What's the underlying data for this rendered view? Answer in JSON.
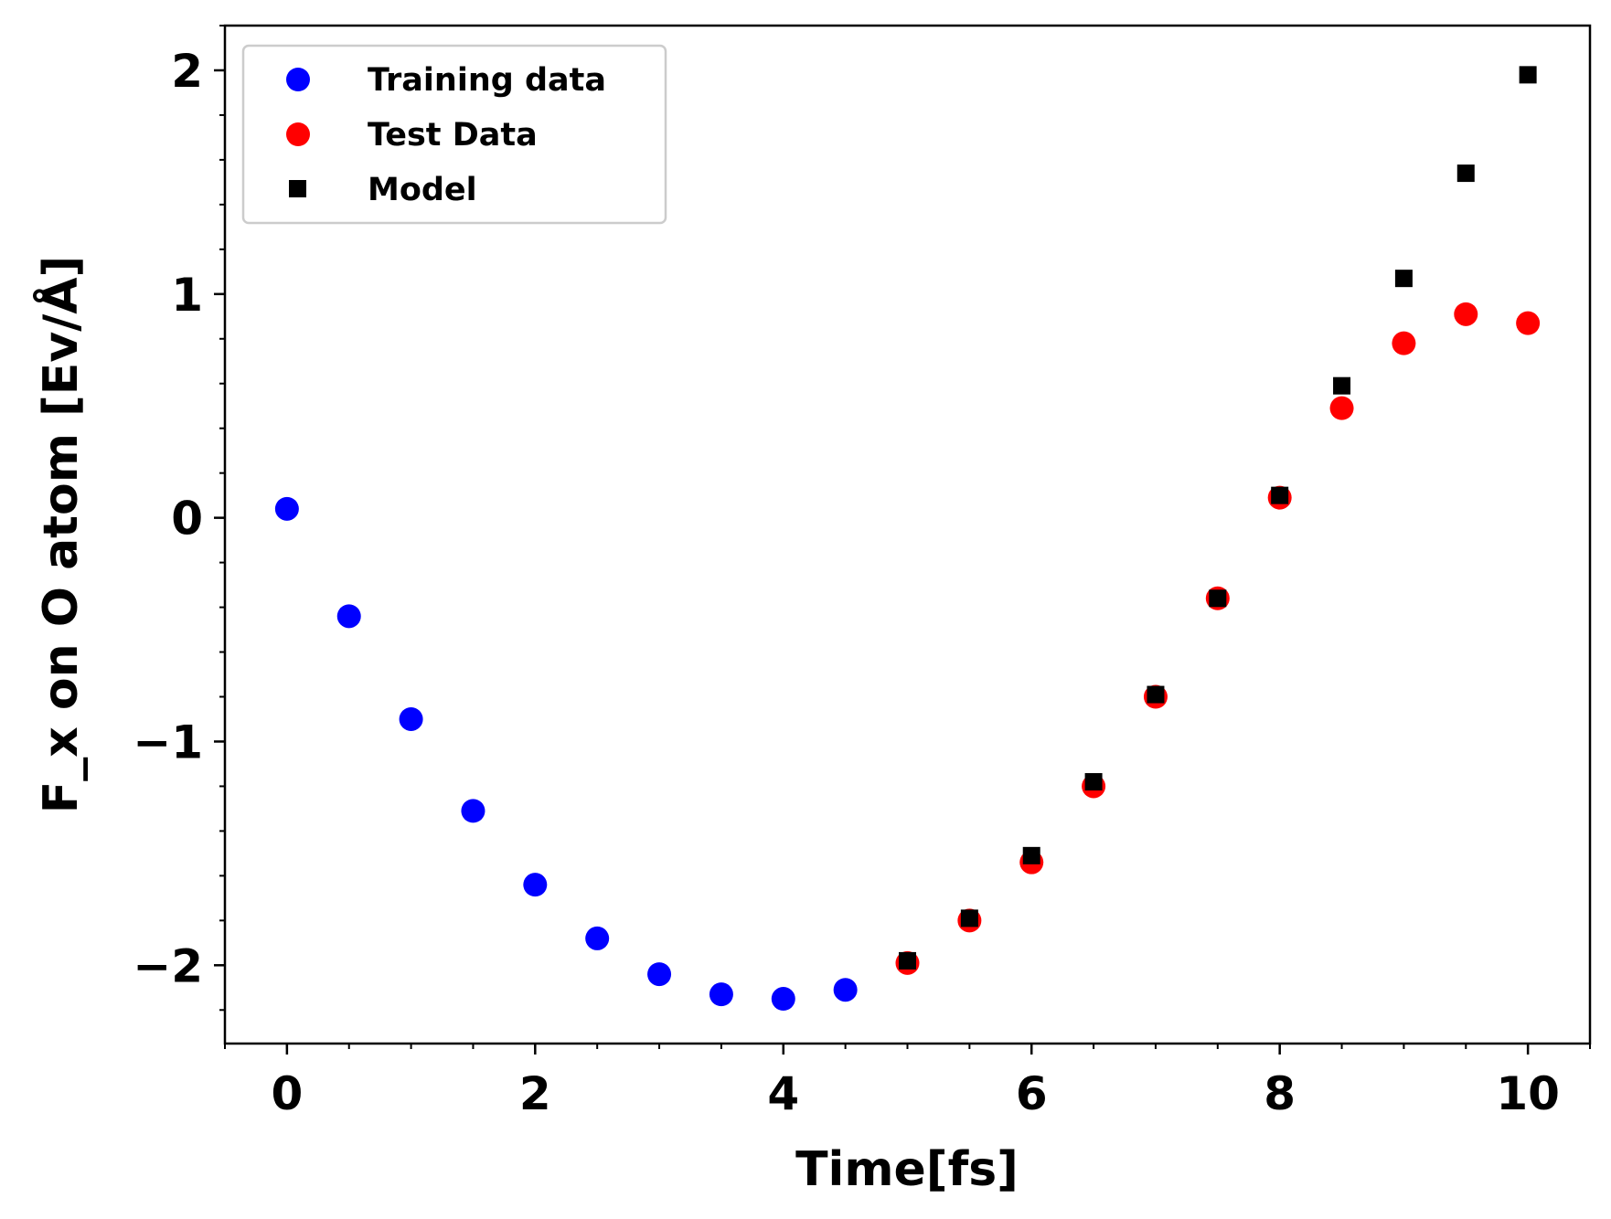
{
  "chart_data": {
    "type": "scatter",
    "xlabel": "Time[fs]",
    "ylabel": "F_x on O atom [Ev/Å]",
    "xlim": [
      -0.5,
      10.5
    ],
    "ylim": [
      -2.35,
      2.2
    ],
    "x_ticks": [
      0,
      2,
      4,
      6,
      8,
      10
    ],
    "x_tick_labels": [
      "0",
      "2",
      "4",
      "6",
      "8",
      "10"
    ],
    "y_ticks": [
      -2,
      -1,
      0,
      1,
      2
    ],
    "y_tick_labels": [
      "−2",
      "−1",
      "0",
      "1",
      "2"
    ],
    "grid": false,
    "legend_position": "top-left",
    "series": [
      {
        "name": "Training data",
        "marker": "circle",
        "color": "#0000ff",
        "x": [
          0,
          0.5,
          1,
          1.5,
          2,
          2.5,
          3,
          3.5,
          4,
          4.5
        ],
        "y": [
          0.04,
          -0.44,
          -0.9,
          -1.31,
          -1.64,
          -1.88,
          -2.04,
          -2.13,
          -2.15,
          -2.11
        ]
      },
      {
        "name": "Test Data",
        "marker": "circle",
        "color": "#ff0000",
        "x": [
          5,
          5.5,
          6,
          6.5,
          7,
          7.5,
          8,
          8.5,
          9,
          9.5,
          10
        ],
        "y": [
          -1.99,
          -1.8,
          -1.54,
          -1.2,
          -0.8,
          -0.36,
          0.09,
          0.49,
          0.78,
          0.91,
          0.87
        ]
      },
      {
        "name": "Model",
        "marker": "square",
        "color": "#000000",
        "x": [
          5,
          5.5,
          6,
          6.5,
          7,
          7.5,
          8,
          8.5,
          9,
          9.5,
          10
        ],
        "y": [
          -1.98,
          -1.79,
          -1.51,
          -1.18,
          -0.79,
          -0.36,
          0.1,
          0.59,
          1.07,
          1.54,
          1.98
        ]
      }
    ]
  }
}
